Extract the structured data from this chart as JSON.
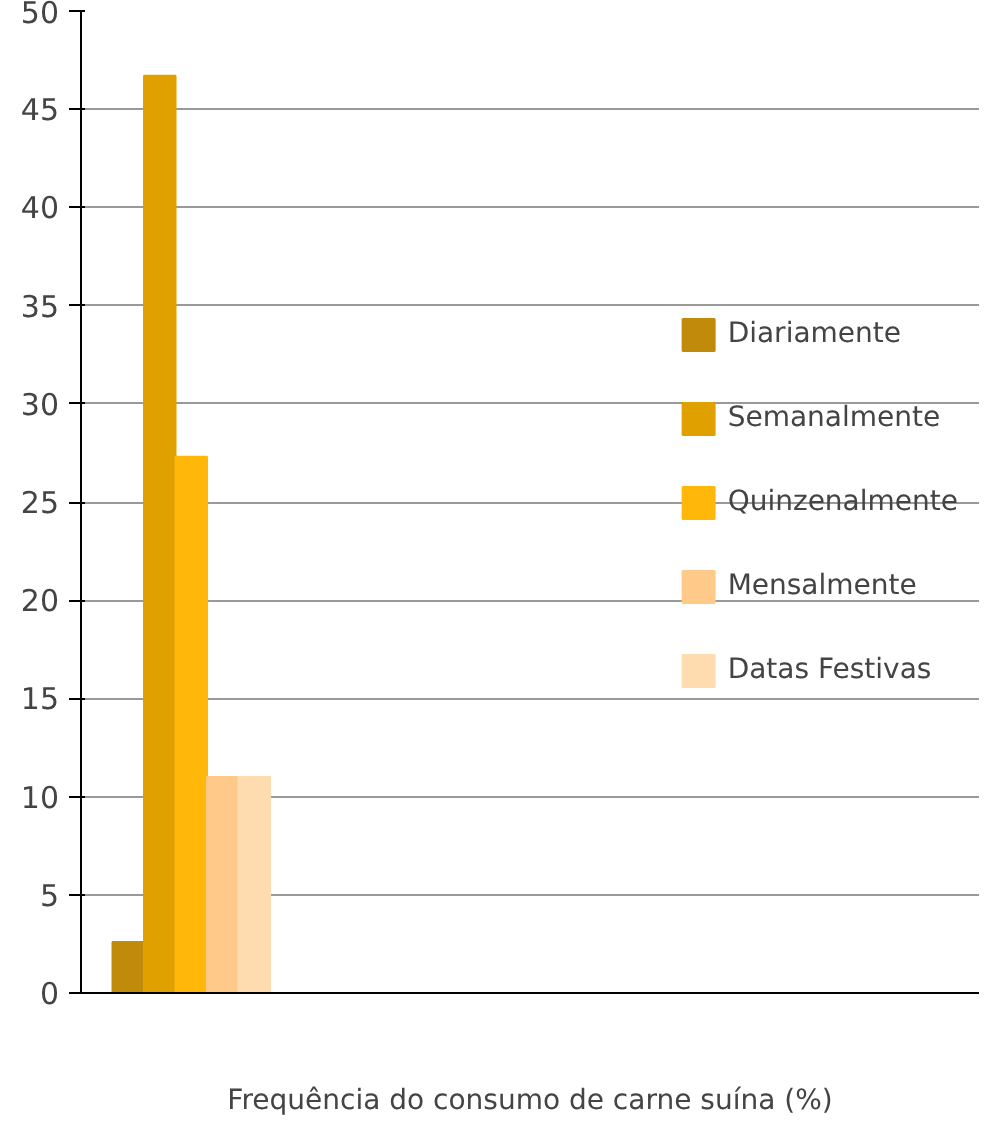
{
  "chart_data": {
    "type": "bar",
    "xlabel": "Frequência do consumo de carne suína (%)",
    "categories": [
      null
    ],
    "series": [
      {
        "name": "Diariamente",
        "color": "#c08a0a",
        "values": [
          2.6
        ]
      },
      {
        "name": "Semanalmente",
        "color": "#e0a000",
        "values": [
          46.7
        ]
      },
      {
        "name": "Quinzenalmente",
        "color": "#ffb80a",
        "values": [
          27.3
        ]
      },
      {
        "name": "Mensalmente",
        "color": "#ffc98a",
        "values": [
          11
        ]
      },
      {
        "name": "Datas Festivas",
        "color": "#ffdcb0",
        "values": [
          11
        ]
      }
    ],
    "ylim": [
      0,
      50
    ],
    "yticks": [
      0,
      5,
      10,
      15,
      20,
      25,
      30,
      35,
      40,
      45,
      50
    ],
    "grid": "y",
    "legend": "right"
  }
}
